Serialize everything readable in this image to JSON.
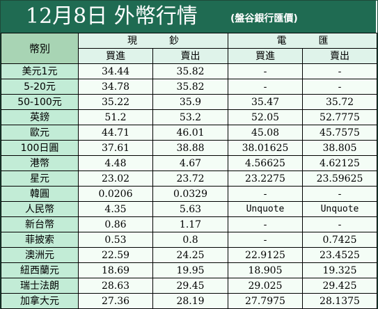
{
  "title": {
    "main": "12月8日 外幣行情",
    "source": "(盤谷銀行匯價)"
  },
  "headers": {
    "currency": "幣別",
    "cash": "現鈔",
    "transfer": "電匯",
    "buy": "買進",
    "sell": "賣出"
  },
  "rows": [
    {
      "name": "美元1元",
      "cash_buy": "34.44",
      "cash_sell": "35.82",
      "tt_buy": "-",
      "tt_sell": "-"
    },
    {
      "name": "5-20元",
      "cash_buy": "34.78",
      "cash_sell": "35.82",
      "tt_buy": "-",
      "tt_sell": "-"
    },
    {
      "name": "50-100元",
      "cash_buy": "35.22",
      "cash_sell": "35.9",
      "tt_buy": "35.47",
      "tt_sell": "35.72"
    },
    {
      "name": "英鎊",
      "cash_buy": "51.2",
      "cash_sell": "53.2",
      "tt_buy": "52.05",
      "tt_sell": "52.7775"
    },
    {
      "name": "歐元",
      "cash_buy": "44.71",
      "cash_sell": "46.01",
      "tt_buy": "45.08",
      "tt_sell": "45.7575"
    },
    {
      "name": "100日圓",
      "cash_buy": "37.61",
      "cash_sell": "38.88",
      "tt_buy": "38.01625",
      "tt_sell": "38.805"
    },
    {
      "name": "港幣",
      "cash_buy": "4.48",
      "cash_sell": "4.67",
      "tt_buy": "4.56625",
      "tt_sell": "4.62125"
    },
    {
      "name": "星元",
      "cash_buy": "23.02",
      "cash_sell": "23.72",
      "tt_buy": "23.2275",
      "tt_sell": "23.59625"
    },
    {
      "name": "韓圓",
      "cash_buy": "0.0206",
      "cash_sell": "0.0329",
      "tt_buy": "-",
      "tt_sell": "-"
    },
    {
      "name": "人民幣",
      "cash_buy": "4.35",
      "cash_sell": "5.63",
      "tt_buy": "Unquote",
      "tt_sell": "Unquote"
    },
    {
      "name": "新台幣",
      "cash_buy": "0.86",
      "cash_sell": "1.17",
      "tt_buy": "-",
      "tt_sell": "-"
    },
    {
      "name": "菲披索",
      "cash_buy": "0.53",
      "cash_sell": "0.8",
      "tt_buy": "-",
      "tt_sell": "0.7425"
    },
    {
      "name": "澳洲元",
      "cash_buy": "22.59",
      "cash_sell": "24.25",
      "tt_buy": "22.9125",
      "tt_sell": "23.4525"
    },
    {
      "name": "紐西蘭元",
      "cash_buy": "18.69",
      "cash_sell": "19.95",
      "tt_buy": "18.905",
      "tt_sell": "19.325"
    },
    {
      "name": "瑞士法朗",
      "cash_buy": "28.63",
      "cash_sell": "29.45",
      "tt_buy": "29.025",
      "tt_sell": "29.425"
    },
    {
      "name": "加拿大元",
      "cash_buy": "27.36",
      "cash_sell": "28.19",
      "tt_buy": "27.7975",
      "tt_sell": "28.1375"
    }
  ]
}
